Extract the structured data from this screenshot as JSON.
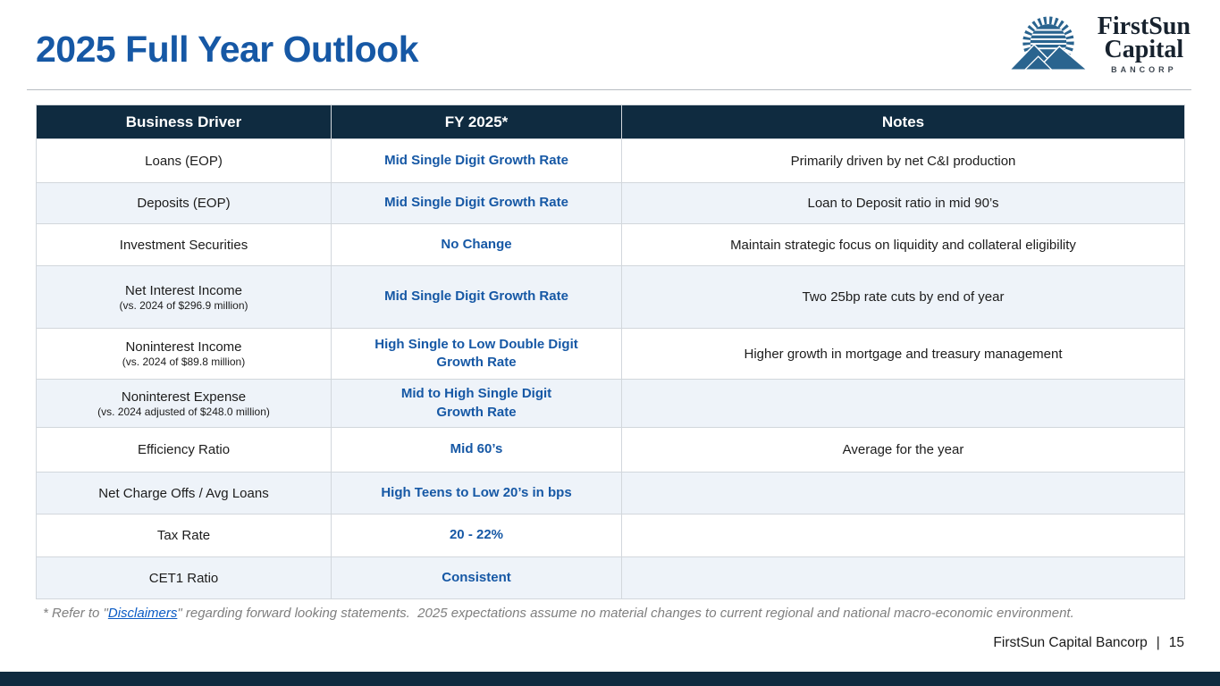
{
  "slide": {
    "title": "2025 Full Year Outlook",
    "logo": {
      "name_line1": "FirstSun",
      "name_line2": "Capital",
      "subtitle": "BANCORP"
    },
    "footnote": {
      "prefix": "* Refer to \"",
      "link_text": "Disclaimers",
      "suffix": "\" regarding forward looking statements.  2025 expectations assume no material changes to current regional and national macro-economic environment."
    },
    "footer": {
      "company": "FirstSun Capital Bancorp",
      "separator": "|",
      "page_number": "15"
    }
  },
  "table": {
    "headers": [
      "Business Driver",
      "FY 2025*",
      "Notes"
    ],
    "rows": [
      {
        "driver": "Loans (EOP)",
        "driver_sub": "",
        "fy2025": "Mid Single Digit Growth Rate",
        "notes": "Primarily driven by net C&I production",
        "shaded": false
      },
      {
        "driver": "Deposits (EOP)",
        "driver_sub": "",
        "fy2025": "Mid Single Digit Growth Rate",
        "notes": "Loan to Deposit ratio in mid 90’s",
        "shaded": true
      },
      {
        "driver": "Investment Securities",
        "driver_sub": "",
        "fy2025": "No Change",
        "notes": "Maintain strategic focus on liquidity and collateral eligibility",
        "shaded": false
      },
      {
        "driver": "Net Interest Income",
        "driver_sub": "(vs. 2024 of $296.9 million)",
        "fy2025": "Mid Single Digit Growth Rate",
        "notes": "Two 25bp rate cuts by end of year",
        "shaded": true
      },
      {
        "driver": "Noninterest Income",
        "driver_sub": "(vs. 2024 of $89.8 million)",
        "fy2025": "High Single to Low Double Digit\nGrowth Rate",
        "notes": "Higher growth in mortgage and treasury management",
        "shaded": false
      },
      {
        "driver": "Noninterest Expense",
        "driver_sub": "(vs. 2024 adjusted of $248.0 million)",
        "fy2025": "Mid to High Single Digit\nGrowth Rate",
        "notes": "",
        "shaded": true
      },
      {
        "driver": "Efficiency Ratio",
        "driver_sub": "",
        "fy2025": "Mid 60’s",
        "notes": "Average for the year",
        "shaded": false
      },
      {
        "driver": "Net Charge Offs / Avg Loans",
        "driver_sub": "",
        "fy2025": "High Teens to Low 20’s in bps",
        "notes": "",
        "shaded": true
      },
      {
        "driver": "Tax Rate",
        "driver_sub": "",
        "fy2025": "20 - 22%",
        "notes": "",
        "shaded": false
      },
      {
        "driver": "CET1 Ratio",
        "driver_sub": "",
        "fy2025": "Consistent",
        "notes": "",
        "shaded": true
      }
    ]
  },
  "colors": {
    "accent_blue": "#1658a5",
    "table_header_bg": "#0f2b40",
    "row_alt_bg": "#eef3f9",
    "bottom_bar": "#0f2b40",
    "footnote_gray": "#7f7f7f",
    "link_blue": "#0b5bc4",
    "logo_blue": "#2a648f"
  }
}
